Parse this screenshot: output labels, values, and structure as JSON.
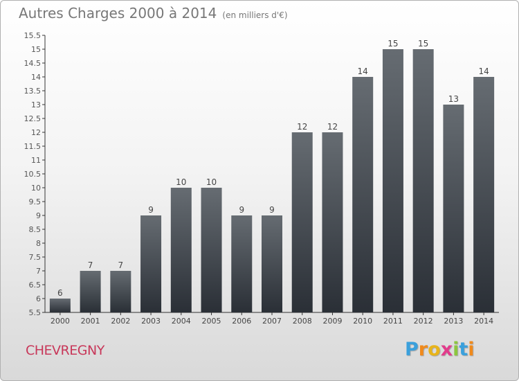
{
  "title": "Autres Charges 2000 à 2014",
  "subtitle": "(en milliers d'€)",
  "town": "CHEVREGNY",
  "brand": {
    "letters": [
      "P",
      "r",
      "o",
      "x",
      "i",
      "t",
      "i"
    ],
    "colors": [
      "#3aa0dc",
      "#f08a1c",
      "#e8b41a",
      "#e23c8c",
      "#8cc63f",
      "#3aa0dc",
      "#f08a1c"
    ]
  },
  "colors": {
    "bar_top": "#666c72",
    "bar_bottom": "#2a2f36",
    "town": "#c8385a",
    "text": "#777777"
  },
  "chart_data": {
    "type": "bar",
    "categories": [
      "2000",
      "2001",
      "2002",
      "2003",
      "2004",
      "2005",
      "2006",
      "2007",
      "2008",
      "2009",
      "2010",
      "2011",
      "2012",
      "2013",
      "2014"
    ],
    "values": [
      6,
      7,
      7,
      9,
      10,
      10,
      9,
      9,
      12,
      12,
      14,
      15,
      15,
      13,
      14
    ],
    "data_labels": [
      "6",
      "7",
      "7",
      "9",
      "10",
      "10",
      "9",
      "9",
      "12",
      "12",
      "14",
      "15",
      "15",
      "13",
      "14"
    ],
    "title": "Autres Charges 2000 à 2014",
    "xlabel": "",
    "ylabel": "",
    "ylim": [
      5.5,
      15.5
    ],
    "yticks": [
      5.5,
      6,
      6.5,
      7,
      7.5,
      8,
      8.5,
      9,
      9.5,
      10,
      10.5,
      11,
      11.5,
      12,
      12.5,
      13,
      13.5,
      14,
      14.5,
      15,
      15.5
    ],
    "ytick_labels": [
      "5.5",
      "6",
      "6.5",
      "7",
      "7.5",
      "8",
      "8.5",
      "9",
      "9.5",
      "10",
      "10.5",
      "11",
      "11.5",
      "12",
      "12.5",
      "13",
      "13.5",
      "14",
      "14.5",
      "15",
      "15.5"
    ],
    "grid": false
  }
}
